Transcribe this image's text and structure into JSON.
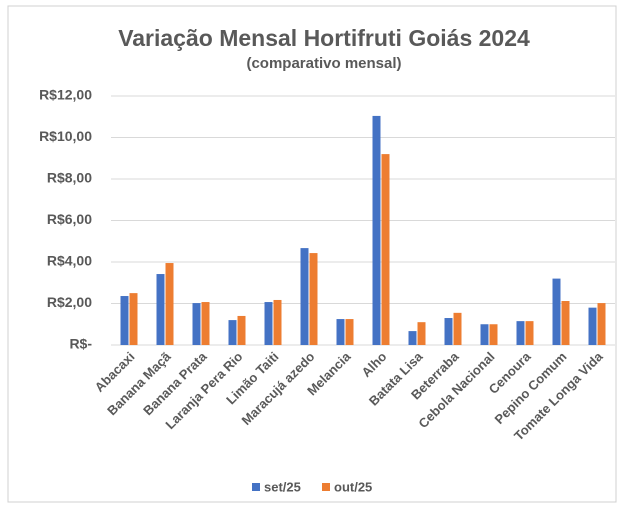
{
  "chart_data": {
    "type": "bar",
    "title": "Variação Mensal Hortifruti Goiás 2024",
    "subtitle": "(comparativo mensal)",
    "categories": [
      "Abacaxi",
      "Banana Maçã",
      "Banana Prata",
      "Laranja Pera Rio",
      "Limão Taiti",
      "Maracujá azedo",
      "Melancia",
      "Alho",
      "Batata Lisa",
      "Beterraba",
      "Cebola Nacional",
      "Cenoura",
      "Pepino Comum",
      "Tomate Longa Vida"
    ],
    "series": [
      {
        "name": "set/25",
        "color": "#4472c4",
        "values": [
          2.36,
          3.42,
          2.02,
          1.2,
          2.07,
          4.67,
          1.25,
          11.04,
          0.67,
          1.3,
          1.0,
          1.15,
          3.2,
          1.8
        ]
      },
      {
        "name": "out/25",
        "color": "#ed7d31",
        "values": [
          2.5,
          3.95,
          2.07,
          1.4,
          2.17,
          4.43,
          1.25,
          9.2,
          1.1,
          1.55,
          1.0,
          1.15,
          2.12,
          2.02
        ]
      }
    ],
    "ylim": [
      0,
      12
    ],
    "yticks": [
      {
        "value": 0,
        "label": "R$-"
      },
      {
        "value": 2,
        "label": "R$2,00"
      },
      {
        "value": 4,
        "label": "R$4,00"
      },
      {
        "value": 6,
        "label": "R$6,00"
      },
      {
        "value": 8,
        "label": "R$8,00"
      },
      {
        "value": 10,
        "label": "R$10,00"
      },
      {
        "value": 12,
        "label": "R$12,00"
      }
    ],
    "grid": true,
    "legend": "bottom"
  }
}
